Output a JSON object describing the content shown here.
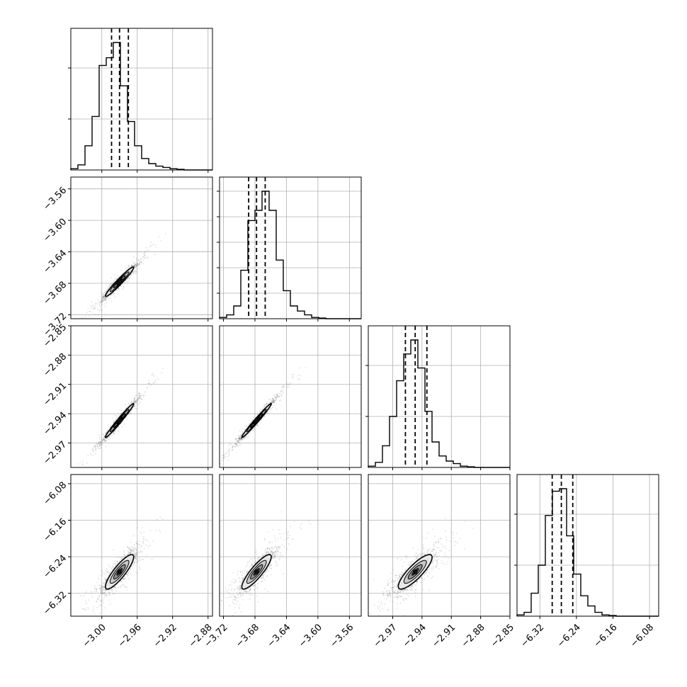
{
  "chart_data": {
    "type": "corner",
    "parameters": 4,
    "axis_ticks": [
      {
        "ticks": [
          -3.0,
          -2.96,
          -2.92,
          -2.88
        ],
        "labels": [
          "−3.00",
          "−2.96",
          "−2.92",
          "−2.88"
        ],
        "range": [
          -3.035,
          -2.875
        ]
      },
      {
        "ticks": [
          -3.72,
          -3.68,
          -3.64,
          -3.6,
          -3.56
        ],
        "labels": [
          "−3.72",
          "−3.68",
          "−3.64",
          "−3.60",
          "−3.56"
        ],
        "range": [
          -3.725,
          -3.545
        ]
      },
      {
        "ticks": [
          -2.97,
          -2.94,
          -2.91,
          -2.88,
          -2.85
        ],
        "labels": [
          "−2.97",
          "−2.94",
          "−2.91",
          "−2.88",
          "−2.85"
        ],
        "range": [
          -2.995,
          -2.85
        ]
      },
      {
        "ticks": [
          -6.32,
          -6.24,
          -6.16,
          -6.08
        ],
        "labels": [
          "−6.32",
          "−6.24",
          "−6.16",
          "−6.08"
        ],
        "range": [
          -6.37,
          -6.06
        ]
      }
    ],
    "histograms": [
      {
        "bins": [
          -3.035,
          -3.027,
          -3.019,
          -3.011,
          -3.003,
          -2.995,
          -2.987,
          -2.979,
          -2.971,
          -2.963,
          -2.955,
          -2.947,
          -2.939,
          -2.931,
          -2.923,
          -2.915,
          -2.907,
          -2.899,
          -2.891,
          -2.883,
          -2.875
        ],
        "counts": [
          0.01,
          0.04,
          0.19,
          0.42,
          0.82,
          0.88,
          1.0,
          0.66,
          0.38,
          0.19,
          0.09,
          0.05,
          0.03,
          0.02,
          0.01,
          0.005,
          0,
          0,
          0,
          0
        ],
        "quantiles": [
          -2.989,
          -2.98,
          -2.97
        ],
        "ygrid": [
          0.4,
          0.8
        ]
      },
      {
        "bins": [
          -3.725,
          -3.716,
          -3.707,
          -3.698,
          -3.689,
          -3.68,
          -3.671,
          -3.662,
          -3.653,
          -3.644,
          -3.635,
          -3.626,
          -3.617,
          -3.608,
          -3.599,
          -3.59,
          -3.581,
          -3.572,
          -3.563,
          -3.554,
          -3.545
        ],
        "counts": [
          0.01,
          0.03,
          0.1,
          0.38,
          0.77,
          0.85,
          1.0,
          0.85,
          0.46,
          0.22,
          0.1,
          0.06,
          0.03,
          0.01,
          0.005,
          0,
          0,
          0,
          0,
          0
        ],
        "quantiles": [
          -3.688,
          -3.678,
          -3.667
        ],
        "ygrid": [
          0.2,
          0.4,
          0.6,
          0.8,
          1.0
        ]
      },
      {
        "bins": [
          -2.995,
          -2.98775,
          -2.9805,
          -2.97325,
          -2.966,
          -2.95875,
          -2.9515,
          -2.94425,
          -2.937,
          -2.92975,
          -2.9225,
          -2.91525,
          -2.908,
          -2.90075,
          -2.8935,
          -2.88625,
          -2.879,
          -2.87175,
          -2.8645,
          -2.85725,
          -2.85
        ],
        "counts": [
          0.01,
          0.04,
          0.17,
          0.4,
          0.68,
          0.89,
          1.0,
          0.78,
          0.44,
          0.2,
          0.09,
          0.05,
          0.03,
          0.01,
          0.005,
          0,
          0,
          0,
          0,
          0
        ],
        "quantiles": [
          -2.957,
          -2.947,
          -2.935
        ],
        "ygrid": [
          0.4,
          0.8
        ]
      },
      {
        "bins": [
          -6.37,
          -6.3545,
          -6.339,
          -6.3235,
          -6.308,
          -6.2925,
          -6.277,
          -6.2615,
          -6.246,
          -6.2305,
          -6.215,
          -6.1995,
          -6.184,
          -6.1685,
          -6.153,
          -6.1375,
          -6.122,
          -6.1065,
          -6.091,
          -6.0755,
          -6.06
        ],
        "counts": [
          0.01,
          0.03,
          0.18,
          0.4,
          0.79,
          0.98,
          1.0,
          0.63,
          0.33,
          0.16,
          0.08,
          0.03,
          0.01,
          0.005,
          0,
          0,
          0,
          0,
          0,
          0
        ],
        "quantiles": [
          -6.293,
          -6.273,
          -6.248
        ],
        "ygrid": [
          0.4,
          0.8
        ]
      }
    ],
    "contours": [
      {
        "i": 1,
        "j": 0,
        "center": [
          -2.98,
          -3.678
        ],
        "cov": [
          [
            7.85e-05,
            8.9e-05
          ],
          [
            8.9e-05,
            0.000108
          ]
        ],
        "levels": [
          1.8,
          1.2,
          0.75,
          0.35
        ]
      },
      {
        "i": 2,
        "j": 0,
        "center": [
          -2.98,
          -2.947
        ],
        "cov": [
          [
            7.85e-05,
            8.37e-05
          ],
          [
            8.37e-05,
            9.26e-05
          ]
        ],
        "levels": [
          1.8,
          1.2,
          0.75,
          0.35
        ]
      },
      {
        "i": 2,
        "j": 1,
        "center": [
          -3.678,
          -2.947
        ],
        "cov": [
          [
            0.000108,
            9.85e-05
          ],
          [
            9.85e-05,
            9.26e-05
          ]
        ],
        "levels": [
          1.8,
          1.2,
          0.75,
          0.35
        ]
      },
      {
        "i": 3,
        "j": 0,
        "center": [
          -2.98,
          -6.273
        ],
        "cov": [
          [
            7.85e-05,
            0.00016
          ],
          [
            0.00016,
            0.00044
          ]
        ],
        "levels": [
          1.8,
          1.2,
          0.75,
          0.35
        ]
      },
      {
        "i": 3,
        "j": 1,
        "center": [
          -3.678,
          -6.273
        ],
        "cov": [
          [
            0.000108,
            0.00019
          ],
          [
            0.00019,
            0.00044
          ]
        ],
        "levels": [
          1.8,
          1.2,
          0.75,
          0.35
        ]
      },
      {
        "i": 3,
        "j": 2,
        "center": [
          -2.947,
          -6.273
        ],
        "cov": [
          [
            9.26e-05,
            0.00017
          ],
          [
            0.00017,
            0.00044
          ]
        ],
        "levels": [
          1.8,
          1.2,
          0.75,
          0.35
        ]
      }
    ],
    "colors": {
      "line": "#000000",
      "grid": "#b0b0b0",
      "scatter": "#000000",
      "contour_fill": [
        "#e8e8e8",
        "#c4c4c4",
        "#8e8e8e",
        "#404040"
      ]
    },
    "grid": true
  }
}
